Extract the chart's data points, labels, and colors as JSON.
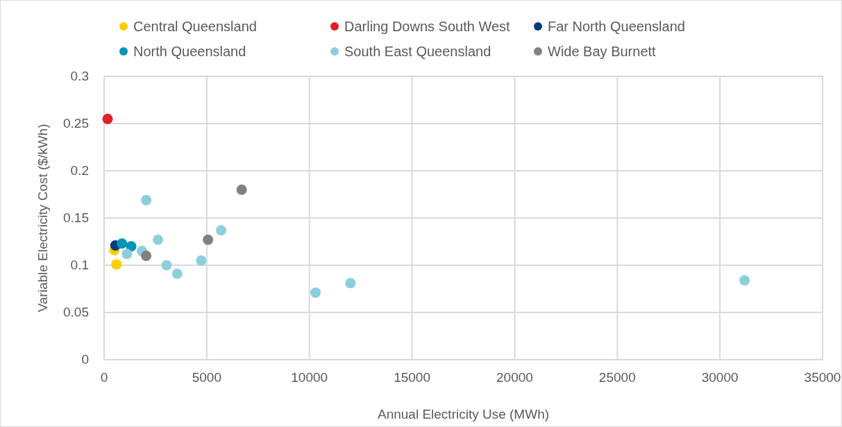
{
  "chart_data": {
    "type": "scatter",
    "xlabel": "Annual Electricity Use (MWh)",
    "ylabel": "Variable Electricity Cost ($/kWh)",
    "xlim": [
      0,
      35000
    ],
    "ylim": [
      0,
      0.3
    ],
    "xticks": [
      0,
      5000,
      10000,
      15000,
      20000,
      25000,
      30000,
      35000
    ],
    "yticks": [
      0,
      0.05,
      0.1,
      0.15,
      0.2,
      0.25,
      0.3
    ],
    "grid": true,
    "legend": "top",
    "marker": "circle",
    "series": [
      {
        "name": "Central Queensland",
        "color": "#ffcc00",
        "x": [
          500,
          600
        ],
        "values": [
          0.116,
          0.101
        ]
      },
      {
        "name": "Darling Downs South West",
        "color": "#e31e24",
        "x": [
          170
        ],
        "values": [
          0.255
        ]
      },
      {
        "name": "Far North Queensland",
        "color": "#003a80",
        "x": [
          550
        ],
        "values": [
          0.121
        ]
      },
      {
        "name": "North Queensland",
        "color": "#0095b6",
        "x": [
          870,
          1320
        ],
        "values": [
          0.123,
          0.12
        ]
      },
      {
        "name": "South East Queensland",
        "color": "#8ccfdc",
        "x": [
          1110,
          2050,
          2620,
          1840,
          3040,
          3560,
          4730,
          5700,
          10300,
          12000,
          31200
        ],
        "values": [
          0.112,
          0.169,
          0.127,
          0.115,
          0.1,
          0.091,
          0.105,
          0.137,
          0.071,
          0.081,
          0.084
        ]
      },
      {
        "name": "Wide Bay Burnett",
        "color": "#808080",
        "x": [
          2050,
          5060,
          6700
        ],
        "values": [
          0.11,
          0.127,
          0.18
        ]
      }
    ]
  }
}
